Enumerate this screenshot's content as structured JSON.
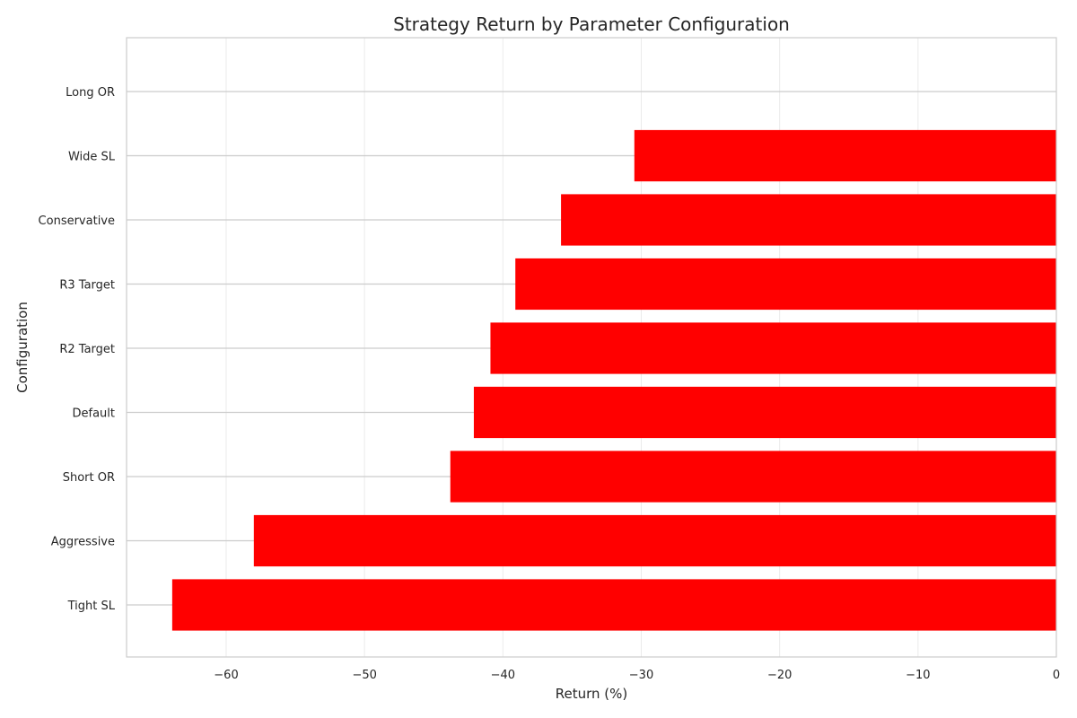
{
  "chart_data": {
    "type": "bar",
    "orientation": "horizontal",
    "title": "Strategy Return by Parameter Configuration",
    "xlabel": "Return (%)",
    "ylabel": "Configuration",
    "categories": [
      "Long OR",
      "Wide SL",
      "Conservative",
      "R3 Target",
      "R2 Target",
      "Default",
      "Short OR",
      "Aggressive",
      "Tight SL"
    ],
    "values": [
      0,
      -30.5,
      -35.8,
      -39.1,
      -40.9,
      -42.1,
      -43.8,
      -58.0,
      -63.9
    ],
    "xlim": [
      -67.2,
      0
    ],
    "xticks": [
      -60,
      -50,
      -40,
      -30,
      -20,
      -10,
      0
    ],
    "xtick_labels": [
      "−60",
      "−50",
      "−40",
      "−30",
      "−20",
      "−10",
      "0"
    ],
    "grid": true,
    "bar_color": "#ff0000",
    "grid_color": "#ebebeb",
    "spine_color": "#cccccc"
  }
}
